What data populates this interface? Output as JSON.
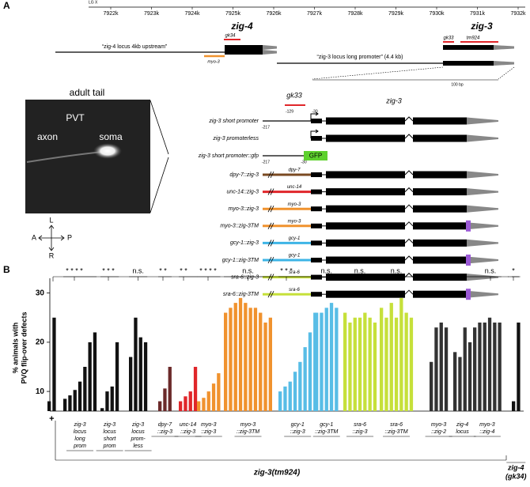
{
  "panel_a": {
    "letter": "A",
    "map": {
      "chromosome": "LG X",
      "ticks": [
        "7922k",
        "7923k",
        "7924k",
        "7925k",
        "7926k",
        "7927k",
        "7928k",
        "7929k",
        "7930k",
        "7931k",
        "7932k"
      ],
      "genes": [
        "zig-4",
        "zig-3"
      ],
      "alleles": [
        "gk34",
        "gk33",
        "tm924"
      ],
      "myo3": "myo-3",
      "regions": [
        "“zig-4 locus 4kb upstream”",
        "“zig-3 locus long promoter” (4.4 kb)"
      ]
    },
    "zoom": {
      "scale": "100 bp",
      "allele": "gk33",
      "gene": "zig-3",
      "positions": [
        "-129",
        "-30",
        "-217",
        "-217",
        "-30"
      ]
    },
    "image": {
      "title": "adult tail",
      "labels": [
        "PVT",
        "axon",
        "soma"
      ],
      "compass": [
        "L",
        "A",
        "P",
        "R"
      ]
    },
    "constructs": [
      "zig-3 short promoter",
      "zig-3 promoterless",
      "zig-3 short promoter::gfp"
    ],
    "gfp": "GFP",
    "fusions": [
      {
        "label": "dpy-7::zig-3",
        "promoter": "dpy-7",
        "color": "#7a4a22",
        "tm": false
      },
      {
        "label": "unc-14::zig-3",
        "promoter": "unc-14",
        "color": "#e0262a",
        "tm": false
      },
      {
        "label": "myo-3::zig-3",
        "promoter": "myo-3",
        "color": "#f0922e",
        "tm": false
      },
      {
        "label": "myo-3::zig-3TM",
        "promoter": "myo-3",
        "color": "#f0922e",
        "tm": true
      },
      {
        "label": "gcy-1::zig-3",
        "promoter": "gcy-1",
        "color": "#3db4e6",
        "tm": false
      },
      {
        "label": "gcy-1::zig-3TM",
        "promoter": "gcy-1",
        "color": "#3db4e6",
        "tm": true
      },
      {
        "label": "sra-6::zig-3",
        "promoter": "sra-6",
        "color": "#c6e03a",
        "tm": false
      },
      {
        "label": "sra-6::zig-3TM",
        "promoter": "sra-6",
        "color": "#c6e03a",
        "tm": true
      }
    ]
  },
  "chart_data": {
    "type": "bar",
    "letter": "B",
    "ylabel": [
      "% animals with",
      "PVQ flip-over defects"
    ],
    "ylim": [
      6,
      33
    ],
    "yticks": [
      10,
      20,
      30
    ],
    "genotype": "zig-3(tm924)",
    "groups": [
      {
        "label": [
          "+"
        ],
        "color": "#111111",
        "values": [
          8,
          25
        ]
      },
      {
        "label": [
          "zig-3",
          "locus",
          "long",
          "prom"
        ],
        "color": "#111111",
        "values": [
          8.5,
          9.2,
          10.3,
          12,
          15,
          20,
          22
        ],
        "sig": "* * * *"
      },
      {
        "label": [
          "zig-3",
          "locus",
          "short",
          "prom"
        ],
        "color": "#111111",
        "values": [
          6.6,
          10,
          11,
          20
        ],
        "sig": "* * *"
      },
      {
        "label": [
          "zig-3",
          "locus",
          "prom-",
          "less"
        ],
        "color": "#111111",
        "values": [
          17,
          25,
          21,
          20
        ],
        "sig": "n.s."
      },
      {
        "label": [
          "dpy-7",
          "::zig-3"
        ],
        "color": "#6b2a2a",
        "values": [
          8,
          10.6,
          15
        ],
        "sig": "* *"
      },
      {
        "label": [
          "unc-14",
          "::zig-3"
        ],
        "color": "#e0262a",
        "values": [
          8,
          9,
          10,
          15
        ],
        "sig": "* *"
      },
      {
        "label": [
          "myo-3",
          "::zig-3"
        ],
        "color": "#f0922e",
        "values": [
          8,
          8.7,
          10,
          11.6,
          13.7
        ],
        "sig": "* * * *"
      },
      {
        "label": [
          "myo-3",
          "::zig-3TM"
        ],
        "color": "#f0922e",
        "values": [
          26,
          27,
          28,
          29,
          28,
          27,
          27,
          26,
          24,
          25
        ],
        "sig": "n.s."
      },
      {
        "label": [
          "gcy-1",
          "::zig-3"
        ],
        "color": "#58bde6",
        "values": [
          10,
          11,
          12,
          14,
          16,
          19,
          22,
          26
        ],
        "sig": "* * *"
      },
      {
        "label": [
          "gcy-1",
          "::zig-3TM"
        ],
        "color": "#58bde6",
        "values": [
          26,
          26,
          27,
          28,
          27
        ],
        "sig": "n.s."
      },
      {
        "label": [
          "sra-6",
          "::zig-3"
        ],
        "color": "#c6e03a",
        "values": [
          26,
          24,
          25,
          25,
          26,
          25,
          24
        ],
        "sig": "n.s."
      },
      {
        "label": [
          "sra-6",
          "::zig-3TM"
        ],
        "color": "#c6e03a",
        "values": [
          27,
          25,
          28,
          25,
          29,
          26,
          25
        ],
        "sig": "n.s."
      },
      {
        "label": [
          "myo-3",
          "::zig-2"
        ],
        "color": "#333333",
        "values": [
          16,
          23,
          24,
          23
        ]
      },
      {
        "label": [
          "zig-4",
          "locus"
        ],
        "color": "#333333",
        "values": [
          18,
          17,
          23,
          20
        ]
      },
      {
        "label": [
          "myo-3",
          "::zig-4"
        ],
        "color": "#333333",
        "values": [
          23,
          24,
          24,
          25,
          24,
          24
        ],
        "sig": "n.s."
      },
      {
        "label": [
          "zig-4",
          "(gk34)"
        ],
        "color": "#111111",
        "values": [
          8,
          24
        ],
        "sig": "*"
      }
    ]
  }
}
